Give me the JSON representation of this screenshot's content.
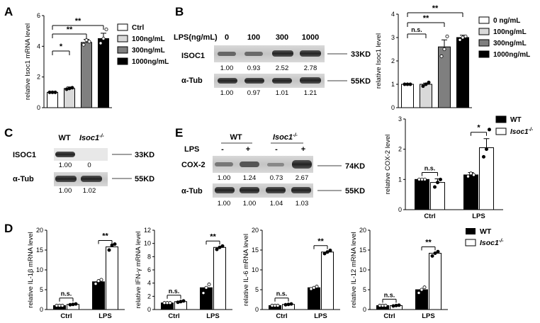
{
  "panels": {
    "a": "A",
    "b": "B",
    "c": "C",
    "d": "D",
    "e": "E"
  },
  "sig": {
    "one": "*",
    "two": "**",
    "ns": "n.s."
  },
  "chart_data": [
    {
      "id": "A",
      "type": "bar",
      "ylabel": "relative Isoc1 mRNA level",
      "ylim": [
        0,
        6
      ],
      "yticks": [
        "0",
        "2",
        "4",
        "6"
      ],
      "categories": [
        "Ctrl",
        "100ng/mL",
        "300ng/mL",
        "1000ng/mL"
      ],
      "values": [
        1.0,
        1.25,
        4.25,
        4.5
      ],
      "errors": [
        0.05,
        0.1,
        0.2,
        0.35
      ],
      "points": [
        [
          1.0,
          1.0,
          1.0
        ],
        [
          1.2,
          1.25,
          1.3
        ],
        [
          4.1,
          4.4,
          4.3
        ],
        [
          4.2,
          4.5,
          5.1
        ]
      ],
      "colors": [
        "#ffffff",
        "#d9d9d9",
        "#7f7f7f",
        "#000000"
      ],
      "legend": [
        "Ctrl",
        "100ng/mL",
        "300ng/mL",
        "1000ng/mL"
      ],
      "significance": [
        {
          "label": "*"
        },
        {
          "label": "**"
        },
        {
          "label": "**"
        }
      ]
    },
    {
      "id": "B",
      "type": "bar",
      "ylabel": "relative Isoc1 level",
      "ylim": [
        0,
        4
      ],
      "yticks": [
        "0",
        "1",
        "2",
        "3",
        "4"
      ],
      "categories": [
        "0 ng/mL",
        "100ng/mL",
        "300ng/mL",
        "1000ng/mL"
      ],
      "values": [
        1.0,
        1.0,
        2.6,
        3.0
      ],
      "errors": [
        0.02,
        0.05,
        0.3,
        0.1
      ],
      "points": [
        [
          1,
          1,
          1
        ],
        [
          0.92,
          1.0,
          1.08
        ],
        [
          2.2,
          2.5,
          3.05
        ],
        [
          2.9,
          3.0,
          3.05
        ]
      ],
      "colors": [
        "#ffffff",
        "#d9d9d9",
        "#7f7f7f",
        "#000000"
      ],
      "legend": [
        "0 ng/mL",
        "100ng/mL",
        "300ng/mL",
        "1000ng/mL"
      ],
      "significance": [
        {
          "label": "n.s."
        },
        {
          "label": "**"
        },
        {
          "label": "**"
        }
      ]
    },
    {
      "id": "E",
      "type": "bar",
      "ylabel": "relative COX-2 level",
      "ylim": [
        0,
        3
      ],
      "yticks": [
        "0",
        "1",
        "2",
        "3"
      ],
      "categories": [
        "Ctrl",
        "LPS"
      ],
      "series": [
        {
          "name": "WT",
          "values": [
            1.0,
            1.15
          ],
          "errors": [
            0.02,
            0.08
          ],
          "points": [
            [
              1,
              1,
              1
            ],
            [
              1.1,
              1.2,
              1.15
            ]
          ]
        },
        {
          "name": "Isoc1-/-",
          "values": [
            0.9,
            2.05
          ],
          "errors": [
            0.12,
            0.3
          ],
          "points": [
            [
              0.75,
              0.9,
              1.0
            ],
            [
              1.75,
              2.0,
              2.65
            ]
          ]
        }
      ],
      "colors": [
        "#000000",
        "#ffffff"
      ],
      "legend": [
        "WT",
        "Isoc1-/-"
      ],
      "significance": [
        {
          "label": "n.s."
        },
        {
          "label": "*"
        }
      ]
    },
    {
      "id": "D1",
      "type": "bar",
      "ylabel": "relative IL-1β mRNA level",
      "ylim": [
        0,
        20
      ],
      "yticks": [
        "0",
        "5",
        "10",
        "15",
        "20"
      ],
      "categories": [
        "Ctrl",
        "LPS"
      ],
      "series": [
        {
          "name": "WT",
          "values": [
            1.0,
            7.0
          ],
          "points": [
            [
              1,
              1,
              1
            ],
            [
              6.5,
              7.2,
              7.5
            ]
          ]
        },
        {
          "name": "Isoc1-/-",
          "values": [
            1.3,
            15.8
          ],
          "points": [
            [
              1.2,
              1.3,
              1.4
            ],
            [
              15,
              16.2,
              16.5
            ]
          ]
        }
      ],
      "significance": [
        {
          "label": "n.s."
        },
        {
          "label": "**"
        }
      ]
    },
    {
      "id": "D2",
      "type": "bar",
      "ylabel": "relative IFN-γ mRNA level",
      "ylim": [
        0,
        12
      ],
      "yticks": [
        "0",
        "2",
        "4",
        "6",
        "8",
        "10",
        "12"
      ],
      "categories": [
        "Ctrl",
        "LPS"
      ],
      "series": [
        {
          "name": "WT",
          "values": [
            1.0,
            3.3
          ],
          "points": [
            [
              1,
              1,
              1
            ],
            [
              2.5,
              3.3,
              3.8
            ]
          ]
        },
        {
          "name": "Isoc1-/-",
          "values": [
            1.2,
            9.4
          ],
          "points": [
            [
              1.1,
              1.2,
              1.3
            ],
            [
              9.1,
              9.4,
              9.6
            ]
          ]
        }
      ],
      "significance": [
        {
          "label": "n.s."
        },
        {
          "label": "**"
        }
      ]
    },
    {
      "id": "D3",
      "type": "bar",
      "ylabel": "relative IL-6 mRNA level",
      "ylim": [
        0,
        20
      ],
      "yticks": [
        "0",
        "5",
        "10",
        "15",
        "20"
      ],
      "categories": [
        "Ctrl",
        "LPS"
      ],
      "series": [
        {
          "name": "WT",
          "values": [
            1.0,
            5.5
          ],
          "points": [
            [
              1,
              1,
              1
            ],
            [
              5.2,
              5.5,
              5.8
            ]
          ]
        },
        {
          "name": "Isoc1-/-",
          "values": [
            1.3,
            14.5
          ],
          "points": [
            [
              1.2,
              1.3,
              1.4
            ],
            [
              14.1,
              14.5,
              14.9
            ]
          ]
        }
      ],
      "significance": [
        {
          "label": "n.s."
        },
        {
          "label": "**"
        }
      ]
    },
    {
      "id": "D4",
      "type": "bar",
      "ylabel": "relative IL-12 mRNA level",
      "ylim": [
        0,
        20
      ],
      "yticks": [
        "0",
        "5",
        "10",
        "15",
        "20"
      ],
      "categories": [
        "Ctrl",
        "LPS"
      ],
      "series": [
        {
          "name": "WT",
          "values": [
            1.0,
            5.0
          ],
          "points": [
            [
              1,
              1,
              1
            ],
            [
              4.2,
              5.0,
              5.6
            ]
          ]
        },
        {
          "name": "Isoc1-/-",
          "values": [
            1.0,
            14.2
          ],
          "points": [
            [
              0.9,
              1.0,
              1.1
            ],
            [
              13.5,
              14.2,
              14.6
            ]
          ]
        }
      ],
      "significance": [
        {
          "label": "n.s."
        },
        {
          "label": "**"
        }
      ]
    }
  ],
  "d_legend": [
    "WT",
    "Isoc1-/-"
  ],
  "blots": {
    "b": {
      "header": "LPS(ng/mL)",
      "lanes": [
        "0",
        "100",
        "300",
        "1000"
      ],
      "row1": "ISOC1",
      "row1_kd": "33KD",
      "row1_vals": [
        "1.00",
        "0.93",
        "2.52",
        "2.78"
      ],
      "row2": "α-Tub",
      "row2_kd": "55KD",
      "row2_vals": [
        "1.00",
        "0.97",
        "1.01",
        "1.21"
      ]
    },
    "c": {
      "lanes": [
        "WT",
        "Isoc1-/-"
      ],
      "row1": "ISOC1",
      "row1_kd": "33KD",
      "row1_vals": [
        "1.00",
        "0"
      ],
      "row2": "α-Tub",
      "row2_kd": "55KD",
      "row2_vals": [
        "1.00",
        "1.02"
      ]
    },
    "e": {
      "groups": [
        "WT",
        "Isoc1-/-"
      ],
      "lps_label": "LPS",
      "lps_signs": [
        "-",
        "+",
        "-",
        "+"
      ],
      "row1": "COX-2",
      "row1_kd": "74KD",
      "row1_vals": [
        "1.00",
        "1.24",
        "0.73",
        "2.67"
      ],
      "row2": "α-Tub",
      "row2_kd": "55KD",
      "row2_vals": [
        "1.00",
        "1.00",
        "1.04",
        "1.03"
      ]
    }
  }
}
